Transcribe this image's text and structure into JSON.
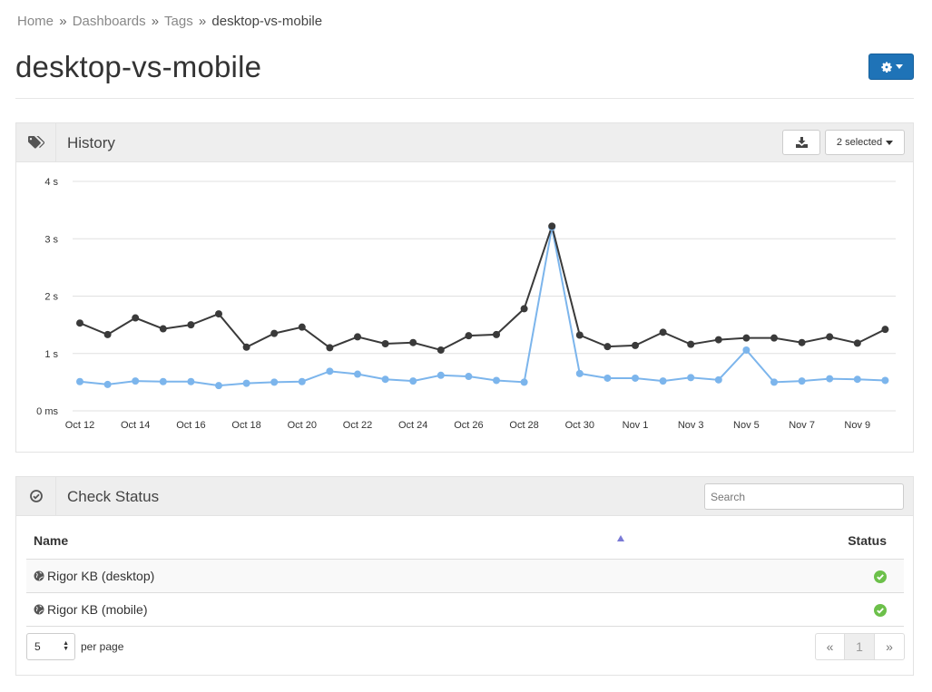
{
  "breadcrumb": {
    "items": [
      "Home",
      "Dashboards",
      "Tags"
    ],
    "separator": "»",
    "current": "desktop-vs-mobile"
  },
  "page": {
    "title": "desktop-vs-mobile"
  },
  "history": {
    "title": "History",
    "selector_label": "2 selected",
    "colors": {
      "desktop": "#3a3a3a",
      "mobile": "#7cb5ec",
      "grid": "#e0e0e0"
    }
  },
  "chart_data": {
    "type": "line",
    "x": [
      "Oct 12",
      "Oct 13",
      "Oct 14",
      "Oct 15",
      "Oct 16",
      "Oct 17",
      "Oct 18",
      "Oct 19",
      "Oct 20",
      "Oct 21",
      "Oct 22",
      "Oct 23",
      "Oct 24",
      "Oct 25",
      "Oct 26",
      "Oct 27",
      "Oct 28",
      "Oct 29",
      "Oct 30",
      "Oct 31",
      "Nov 1",
      "Nov 2",
      "Nov 3",
      "Nov 4",
      "Nov 5",
      "Nov 6",
      "Nov 7",
      "Nov 8",
      "Nov 9",
      "Nov 10"
    ],
    "x_tick_labels": [
      "Oct 12",
      "Oct 14",
      "Oct 16",
      "Oct 18",
      "Oct 20",
      "Oct 22",
      "Oct 24",
      "Oct 26",
      "Oct 28",
      "Oct 30",
      "Nov 1",
      "Nov 3",
      "Nov 5",
      "Nov 7",
      "Nov 9"
    ],
    "y_tick_labels": [
      "0 ms",
      "1 s",
      "2 s",
      "3 s",
      "4 s"
    ],
    "ylim": [
      0,
      4
    ],
    "yunit": "s",
    "grid": true,
    "series": [
      {
        "values": [
          1.53,
          1.33,
          1.62,
          1.43,
          1.5,
          1.69,
          1.11,
          1.35,
          1.46,
          1.1,
          1.29,
          1.17,
          1.19,
          1.06,
          1.31,
          1.33,
          1.78,
          3.22,
          1.32,
          1.12,
          1.14,
          1.37,
          1.16,
          1.24,
          1.27,
          1.27,
          1.19,
          1.29,
          1.18,
          1.42
        ]
      },
      {
        "values": [
          0.51,
          0.46,
          0.52,
          0.51,
          0.51,
          0.44,
          0.48,
          0.5,
          0.51,
          0.69,
          0.64,
          0.55,
          0.52,
          0.62,
          0.6,
          0.53,
          0.5,
          3.2,
          0.65,
          0.57,
          0.57,
          0.52,
          0.58,
          0.54,
          1.06,
          0.5,
          0.52,
          0.56,
          0.55,
          0.53
        ]
      }
    ]
  },
  "check_status": {
    "title": "Check Status",
    "search_placeholder": "Search",
    "columns": {
      "name": "Name",
      "status": "Status"
    },
    "rows": [
      {
        "name": "Rigor KB (desktop)",
        "status": "ok"
      },
      {
        "name": "Rigor KB (mobile)",
        "status": "ok"
      }
    ],
    "per_page_value": "5",
    "per_page_label": "per page",
    "pagination": {
      "prev": "«",
      "page": "1",
      "next": "»"
    },
    "colors": {
      "ok": "#6cc04a"
    }
  }
}
